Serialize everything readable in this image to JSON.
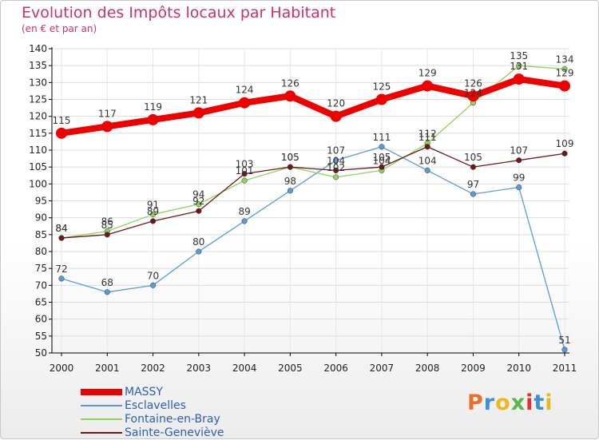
{
  "chart_data": {
    "type": "line",
    "title": "Evolution des Impôts locaux par Habitant",
    "subtitle": "(en € et par an)",
    "xlabel": "",
    "ylabel": "",
    "categories": [
      "2000",
      "2001",
      "2002",
      "2003",
      "2004",
      "2005",
      "2006",
      "2007",
      "2008",
      "2009",
      "2010",
      "2011"
    ],
    "ylim": [
      50,
      140
    ],
    "yticks": [
      50,
      55,
      60,
      65,
      70,
      75,
      80,
      85,
      90,
      95,
      100,
      105,
      110,
      115,
      120,
      125,
      130,
      135,
      140
    ],
    "legend_position": "bottom-left",
    "series": [
      {
        "name": "Esclavelles",
        "color": "#5b9bd5",
        "values": [
          72,
          68,
          70,
          80,
          89,
          98,
          107,
          111,
          104,
          97,
          99,
          51
        ]
      },
      {
        "name": "Fontaine-en-Bray",
        "color": "#8fd45a",
        "values": [
          84,
          86,
          91,
          94,
          101,
          105,
          102,
          104,
          112,
          124,
          135,
          134
        ]
      },
      {
        "name": "Sainte-Geneviève",
        "color": "#6b1a1a",
        "values": [
          84,
          85,
          89,
          92,
          103,
          105,
          104,
          105,
          111,
          105,
          107,
          109
        ]
      },
      {
        "name": "MASSY",
        "color": "#ee0000",
        "values": [
          115,
          117,
          119,
          121,
          124,
          126,
          120,
          125,
          129,
          126,
          131,
          129
        ]
      }
    ],
    "legend_order": [
      3,
      0,
      1,
      2
    ]
  },
  "logo": {
    "text": "Proxiti",
    "colors": [
      "#e8712a",
      "#3a8fd6",
      "#ecb81f",
      "#5ab54a",
      "#d9352c",
      "#3a8fd6",
      "#ecb81f"
    ]
  }
}
